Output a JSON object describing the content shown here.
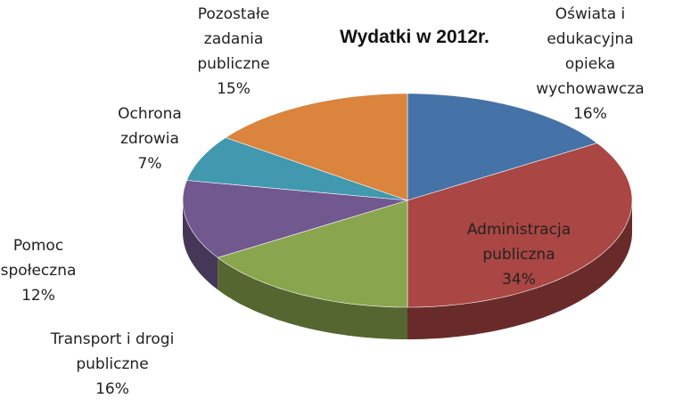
{
  "chart_data": {
    "type": "pie3d",
    "title": "Wydatki w 2012r.",
    "categories": [
      "Oświata i edukacyjna opieka wychowawcza",
      "Administracja publiczna",
      "Transport i drogi publiczne",
      "Pomoc społeczna",
      "Ochrona zdrowia",
      "Pozostałe zadania publiczne"
    ],
    "values": [
      16,
      34,
      16,
      12,
      7,
      15
    ],
    "value_labels": [
      "16%",
      "34%",
      "16%",
      "12%",
      "7%",
      "15%"
    ],
    "colors": [
      "#4572a7",
      "#aa4643",
      "#89a54e",
      "#71588f",
      "#4198af",
      "#db843d"
    ]
  }
}
